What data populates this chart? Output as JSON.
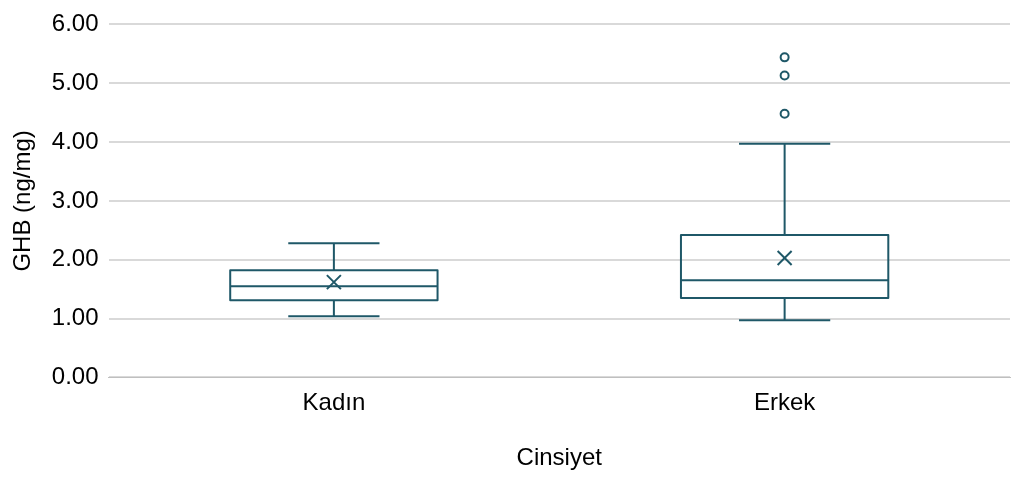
{
  "chart_data": {
    "type": "box",
    "xlabel": "Cinsiyet",
    "ylabel": "GHB (ng/mg)",
    "categories": [
      "Kadın",
      "Erkek"
    ],
    "color": "#1f5868",
    "boxes": [
      {
        "low": 1.04,
        "q1": 1.31,
        "median": 1.55,
        "q3": 1.82,
        "high": 2.28,
        "mean": 1.62
      },
      {
        "low": 0.97,
        "q1": 1.35,
        "median": 1.65,
        "q3": 2.42,
        "high": 3.97,
        "mean": 2.03,
        "outliers": [
          4.48,
          5.13,
          5.44
        ]
      }
    ],
    "ylim": [
      0,
      6
    ],
    "yticks": [
      {
        "value": 0,
        "label": "0.00"
      },
      {
        "value": 1,
        "label": "1.00"
      },
      {
        "value": 2,
        "label": "2.00"
      },
      {
        "value": 3,
        "label": "3.00"
      },
      {
        "value": 4,
        "label": "4.00"
      },
      {
        "value": 5,
        "label": "5.00"
      },
      {
        "value": 6,
        "label": "6.00"
      }
    ],
    "grid": "y",
    "legend": false
  }
}
